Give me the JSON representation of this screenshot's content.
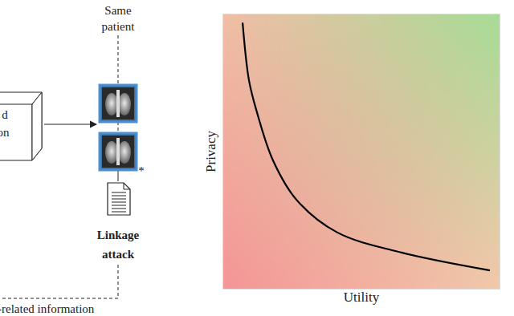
{
  "diagram": {
    "box_text": [
      "d",
      "on"
    ],
    "top_label": [
      "Same",
      "patient"
    ],
    "asterisk": "*",
    "attack_label": [
      "Linkage",
      "attack"
    ],
    "bottom_text": "-related information"
  },
  "chart_data": {
    "type": "line",
    "x_label": "Utility",
    "y_label": "Privacy",
    "x": [
      0.07,
      0.093,
      0.122,
      0.18,
      0.267,
      0.413,
      0.645,
      0.965
    ],
    "values": [
      0.97,
      0.76,
      0.643,
      0.468,
      0.322,
      0.205,
      0.132,
      0.067
    ],
    "xlim": [
      0,
      1
    ],
    "ylim": [
      0,
      1
    ],
    "color": "#000000",
    "tick_labels": false,
    "grid": false
  }
}
